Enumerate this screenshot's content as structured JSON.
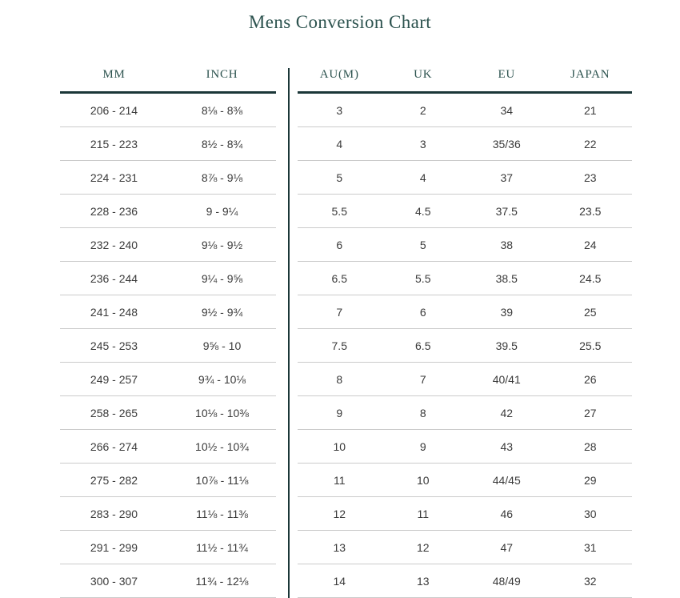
{
  "page": {
    "title": "Mens Conversion Chart"
  },
  "colors": {
    "accent_text": "#2d534f",
    "rule_dark": "#1b3738",
    "row_separator": "#cbcbcb",
    "cell_text": "#3a3a3a",
    "background": "#ffffff"
  },
  "measurement_table": {
    "headers": [
      "MM",
      "INCH"
    ],
    "rows": [
      [
        "206 - 214",
        "8⅛ - 8⅜"
      ],
      [
        "215 - 223",
        "8½ - 8¾"
      ],
      [
        "224 - 231",
        "8⅞ - 9⅛"
      ],
      [
        "228 - 236",
        "9 - 9¼"
      ],
      [
        "232 - 240",
        "9⅛ - 9½"
      ],
      [
        "236 - 244",
        "9¼ - 9⅝"
      ],
      [
        "241 - 248",
        "9½ - 9¾"
      ],
      [
        "245 - 253",
        "9⅝ - 10"
      ],
      [
        "249 - 257",
        "9¾ - 10⅛"
      ],
      [
        "258 - 265",
        "10⅛ - 10⅜"
      ],
      [
        "266 - 274",
        "10½ - 10¾"
      ],
      [
        "275 - 282",
        "10⅞ - 11⅛"
      ],
      [
        "283 - 290",
        "11⅛ - 11⅜"
      ],
      [
        "291 - 299",
        "11½ - 11¾"
      ],
      [
        "300 - 307",
        "11¾ - 12⅛"
      ]
    ]
  },
  "size_table": {
    "headers": [
      "AU(M)",
      "UK",
      "EU",
      "JAPAN"
    ],
    "rows": [
      [
        "3",
        "2",
        "34",
        "21"
      ],
      [
        "4",
        "3",
        "35/36",
        "22"
      ],
      [
        "5",
        "4",
        "37",
        "23"
      ],
      [
        "5.5",
        "4.5",
        "37.5",
        "23.5"
      ],
      [
        "6",
        "5",
        "38",
        "24"
      ],
      [
        "6.5",
        "5.5",
        "38.5",
        "24.5"
      ],
      [
        "7",
        "6",
        "39",
        "25"
      ],
      [
        "7.5",
        "6.5",
        "39.5",
        "25.5"
      ],
      [
        "8",
        "7",
        "40/41",
        "26"
      ],
      [
        "9",
        "8",
        "42",
        "27"
      ],
      [
        "10",
        "9",
        "43",
        "28"
      ],
      [
        "11",
        "10",
        "44/45",
        "29"
      ],
      [
        "12",
        "11",
        "46",
        "30"
      ],
      [
        "13",
        "12",
        "47",
        "31"
      ],
      [
        "14",
        "13",
        "48/49",
        "32"
      ]
    ]
  }
}
